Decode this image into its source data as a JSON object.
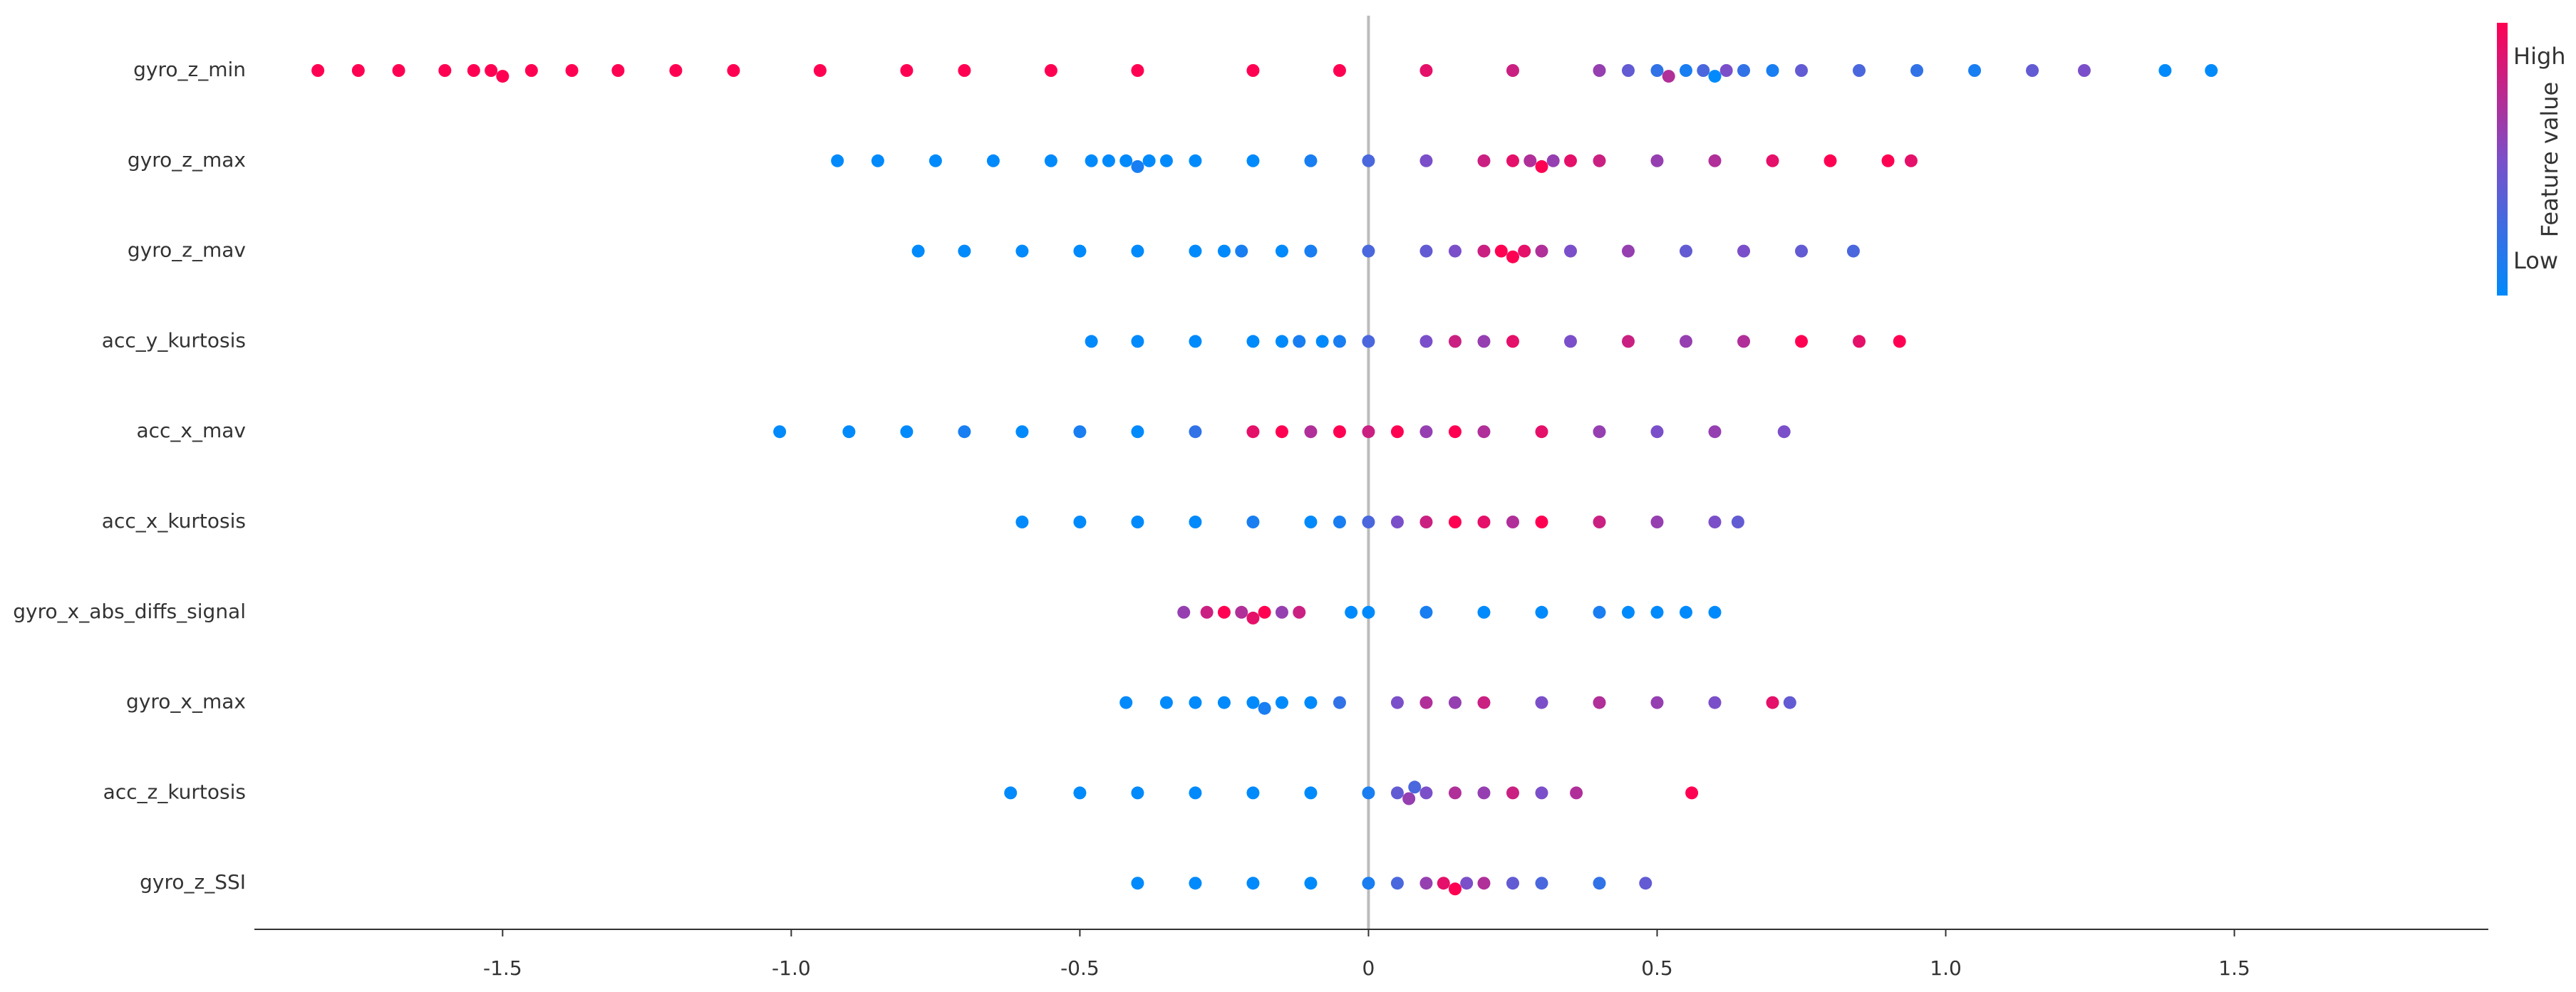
{
  "chart_data": {
    "type": "beeswarm",
    "xlim": [
      -1.93,
      1.94
    ],
    "xticks": [
      -1.5,
      {
        "value": -1.0,
        "label": "-1.0"
      },
      -0.5,
      0,
      0.5,
      {
        "value": 1.0,
        "label": "1.0"
      },
      1.5
    ],
    "colormap": [
      "#008afb",
      "#7b4fc9",
      "#ff0052"
    ],
    "colorbar": {
      "label": "Feature value",
      "high": "High",
      "low": "Low"
    },
    "series": [
      {
        "name": "gyro_z_min",
        "values": [
          -1.82,
          -1.75,
          -1.68,
          -1.6,
          -1.55,
          -1.52,
          -1.5,
          -1.45,
          -1.38,
          -1.3,
          -1.2,
          -1.1,
          -0.95,
          -0.8,
          -0.7,
          -0.55,
          -0.4,
          -0.2,
          -0.05,
          0.1,
          0.25,
          0.4,
          0.45,
          0.5,
          0.52,
          0.55,
          0.58,
          0.6,
          0.62,
          0.65,
          0.7,
          0.75,
          0.85,
          0.95,
          1.05,
          1.15,
          1.24,
          1.38,
          1.46
        ],
        "feature_values": [
          1,
          1,
          1,
          1,
          1,
          1,
          1,
          1,
          1,
          1,
          1,
          1,
          1,
          1,
          1,
          1,
          1,
          1,
          1,
          0.9,
          0.8,
          0.6,
          0.4,
          0.2,
          0.7,
          0.1,
          0.3,
          0,
          0.5,
          0.2,
          0.1,
          0.4,
          0.3,
          0.2,
          0.1,
          0.4,
          0.5,
          0,
          0
        ]
      },
      {
        "name": "gyro_z_max",
        "values": [
          -0.92,
          -0.85,
          -0.75,
          -0.65,
          -0.55,
          -0.48,
          -0.45,
          -0.42,
          -0.4,
          -0.38,
          -0.35,
          -0.3,
          -0.2,
          -0.1,
          0.0,
          0.1,
          0.2,
          0.25,
          0.28,
          0.3,
          0.32,
          0.35,
          0.4,
          0.5,
          0.6,
          0.7,
          0.8,
          0.9,
          0.94
        ],
        "feature_values": [
          0,
          0,
          0,
          0,
          0,
          0,
          0,
          0,
          0.1,
          0,
          0,
          0,
          0,
          0.1,
          0.3,
          0.5,
          0.8,
          0.9,
          0.7,
          1,
          0.6,
          0.9,
          0.8,
          0.6,
          0.7,
          0.9,
          1,
          1,
          0.9
        ]
      },
      {
        "name": "gyro_z_mav",
        "values": [
          -0.78,
          -0.7,
          -0.6,
          -0.5,
          -0.4,
          -0.3,
          -0.25,
          -0.22,
          -0.15,
          -0.1,
          0,
          0.1,
          0.15,
          0.2,
          0.23,
          0.25,
          0.27,
          0.3,
          0.35,
          0.45,
          0.55,
          0.65,
          0.75,
          0.84
        ],
        "feature_values": [
          0,
          0,
          0,
          0,
          0,
          0,
          0,
          0.1,
          0,
          0.1,
          0.3,
          0.4,
          0.5,
          0.8,
          1,
          1,
          0.9,
          0.7,
          0.5,
          0.6,
          0.4,
          0.5,
          0.4,
          0.3
        ]
      },
      {
        "name": "acc_y_kurtosis",
        "values": [
          -0.48,
          -0.4,
          -0.3,
          -0.2,
          -0.15,
          -0.12,
          -0.08,
          -0.05,
          0,
          0.1,
          0.15,
          0.2,
          0.25,
          0.35,
          0.45,
          0.55,
          0.65,
          0.75,
          0.85,
          0.92
        ],
        "feature_values": [
          0,
          0,
          0,
          0,
          0,
          0.1,
          0,
          0.1,
          0.3,
          0.5,
          0.8,
          0.6,
          0.9,
          0.5,
          0.8,
          0.6,
          0.7,
          1,
          0.9,
          1
        ]
      },
      {
        "name": "acc_x_mav",
        "values": [
          -1.02,
          -0.9,
          -0.8,
          -0.7,
          -0.6,
          -0.5,
          -0.4,
          -0.3,
          -0.2,
          -0.15,
          -0.1,
          -0.05,
          0,
          0.05,
          0.1,
          0.15,
          0.2,
          0.3,
          0.4,
          0.5,
          0.6,
          0.72
        ],
        "feature_values": [
          0,
          0,
          0,
          0.1,
          0,
          0.1,
          0,
          0.2,
          0.9,
          1,
          0.7,
          1,
          0.8,
          1,
          0.6,
          1,
          0.7,
          0.9,
          0.6,
          0.5,
          0.6,
          0.5
        ]
      },
      {
        "name": "acc_x_kurtosis",
        "values": [
          -0.6,
          -0.5,
          -0.4,
          -0.3,
          -0.2,
          -0.1,
          -0.05,
          0,
          0.05,
          0.1,
          0.15,
          0.2,
          0.25,
          0.3,
          0.4,
          0.5,
          0.6,
          0.64
        ],
        "feature_values": [
          0,
          0,
          0,
          0,
          0.1,
          0,
          0.1,
          0.3,
          0.5,
          0.8,
          1,
          0.9,
          0.7,
          1,
          0.8,
          0.6,
          0.5,
          0.4
        ]
      },
      {
        "name": "gyro_x_abs_diffs_signal",
        "values": [
          -0.32,
          -0.28,
          -0.25,
          -0.22,
          -0.2,
          -0.18,
          -0.15,
          -0.12,
          -0.03,
          0,
          0.1,
          0.2,
          0.3,
          0.4,
          0.45,
          0.5,
          0.55,
          0.6
        ],
        "feature_values": [
          0.6,
          0.8,
          1,
          0.7,
          0.9,
          1,
          0.6,
          0.8,
          0,
          0,
          0.1,
          0,
          0,
          0.1,
          0,
          0,
          0,
          0
        ]
      },
      {
        "name": "gyro_x_max",
        "values": [
          -0.42,
          -0.35,
          -0.3,
          -0.25,
          -0.2,
          -0.18,
          -0.15,
          -0.1,
          -0.05,
          0.05,
          0.1,
          0.15,
          0.2,
          0.3,
          0.4,
          0.5,
          0.6,
          0.7,
          0.73
        ],
        "feature_values": [
          0,
          0,
          0,
          0,
          0,
          0.1,
          0,
          0,
          0.2,
          0.5,
          0.7,
          0.6,
          0.8,
          0.5,
          0.7,
          0.6,
          0.5,
          0.9,
          0.4
        ]
      },
      {
        "name": "acc_z_kurtosis",
        "values": [
          -0.62,
          -0.5,
          -0.4,
          -0.3,
          -0.2,
          -0.1,
          0,
          0.05,
          0.07,
          0.08,
          0.1,
          0.15,
          0.2,
          0.25,
          0.3,
          0.36,
          0.56
        ],
        "feature_values": [
          0,
          0,
          0,
          0,
          0,
          0,
          0.1,
          0.4,
          0.6,
          0.3,
          0.5,
          0.7,
          0.6,
          0.8,
          0.5,
          0.7,
          1
        ]
      },
      {
        "name": "gyro_z_SSI",
        "values": [
          -0.4,
          -0.3,
          -0.2,
          -0.1,
          0,
          0.05,
          0.1,
          0.13,
          0.15,
          0.17,
          0.2,
          0.25,
          0.3,
          0.4,
          0.48
        ],
        "feature_values": [
          0,
          0,
          0,
          0,
          0.1,
          0.3,
          0.6,
          0.9,
          1,
          0.5,
          0.7,
          0.4,
          0.3,
          0.2,
          0.4
        ]
      }
    ]
  }
}
